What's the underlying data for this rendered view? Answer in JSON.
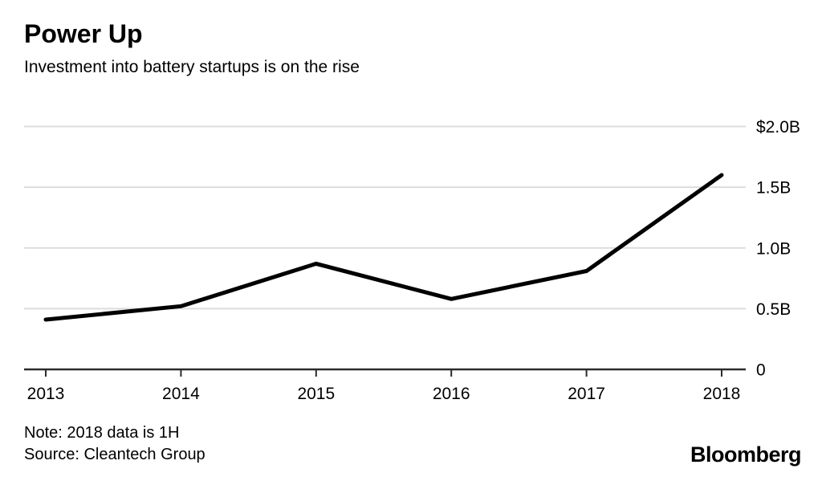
{
  "header": {
    "title": "Power Up",
    "subtitle": "Investment into battery startups is on the rise"
  },
  "chart_data": {
    "type": "line",
    "title": "Power Up",
    "subtitle": "Investment into battery startups is on the rise",
    "categories": [
      "2013",
      "2014",
      "2015",
      "2016",
      "2017",
      "2018"
    ],
    "series": [
      {
        "name": "Investment into battery startups ($B)",
        "values": [
          0.41,
          0.52,
          0.87,
          0.58,
          0.81,
          1.6
        ]
      }
    ],
    "xlabel": "",
    "ylabel": "",
    "ylim": [
      0,
      2.0
    ],
    "yticks": [
      {
        "value": 0,
        "label": "0"
      },
      {
        "value": 0.5,
        "label": "0.5B"
      },
      {
        "value": 1.0,
        "label": "1.0B"
      },
      {
        "value": 1.5,
        "label": "1.5B"
      },
      {
        "value": 2.0,
        "label": "$2.0B"
      }
    ],
    "grid": true,
    "legend_position": "none",
    "colors": {
      "line": "#000000",
      "gridline": "#dcdcdc",
      "axis": "#2b2b2b",
      "text": "#000000",
      "background": "#ffffff"
    }
  },
  "footer": {
    "note": "Note: 2018 data is 1H",
    "source": "Source: Cleantech Group",
    "brand": "Bloomberg"
  }
}
